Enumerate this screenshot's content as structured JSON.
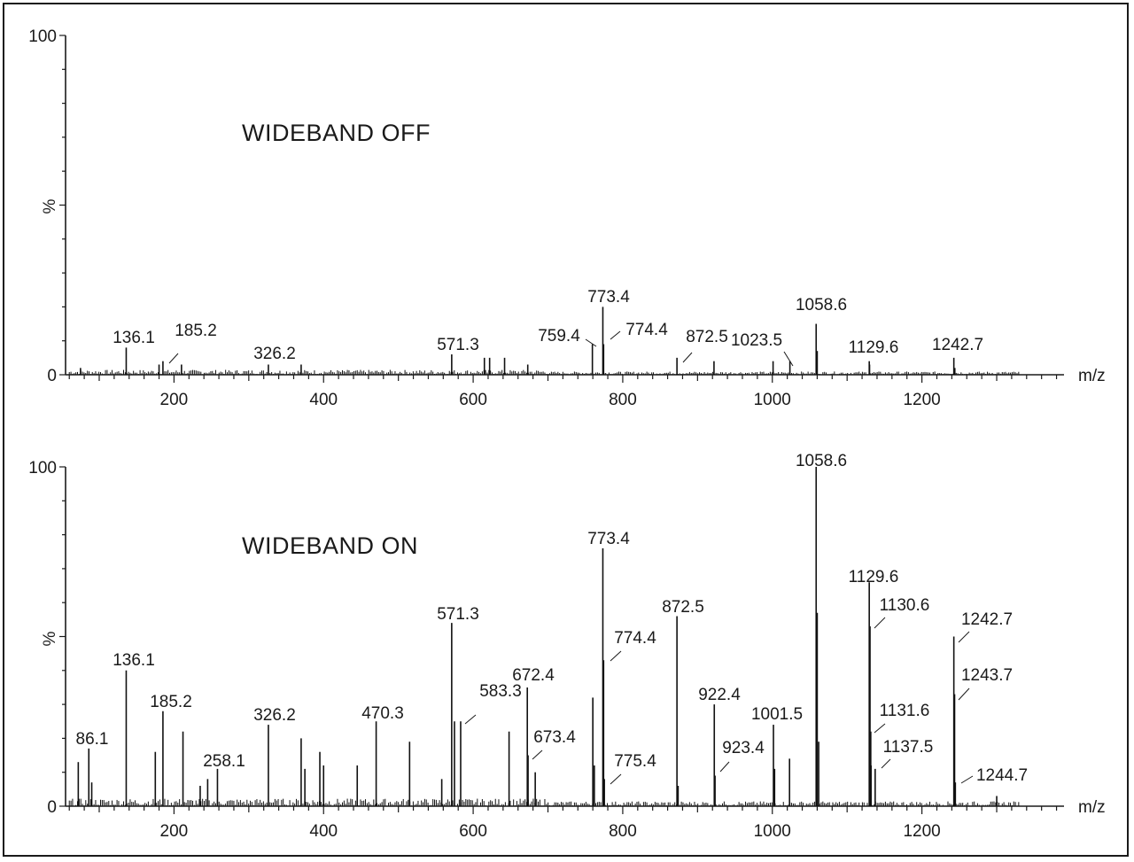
{
  "chart_data": [
    {
      "type": "bar",
      "title": "WIDEBAND OFF",
      "ylabel": "%",
      "xlabel": "m/z",
      "xlim": [
        55,
        1390
      ],
      "ylim": [
        0,
        100
      ],
      "xticks": [
        200,
        400,
        600,
        800,
        1000,
        1200
      ],
      "yticks": [
        0,
        100
      ],
      "peaks": [
        {
          "mz": 136.1,
          "intensity": 8,
          "label": "136.1"
        },
        {
          "mz": 185.2,
          "intensity": 4,
          "label": "185.2"
        },
        {
          "mz": 326.2,
          "intensity": 3,
          "label": "326.2"
        },
        {
          "mz": 571.3,
          "intensity": 6,
          "label": "571.3"
        },
        {
          "mz": 759.4,
          "intensity": 9,
          "label": "759.4"
        },
        {
          "mz": 773.4,
          "intensity": 20,
          "label": "773.4"
        },
        {
          "mz": 774.4,
          "intensity": 9,
          "label": "774.4"
        },
        {
          "mz": 872.5,
          "intensity": 5,
          "label": "872.5"
        },
        {
          "mz": 1023.5,
          "intensity": 4,
          "label": "1023.5"
        },
        {
          "mz": 1058.6,
          "intensity": 15,
          "label": "1058.6"
        },
        {
          "mz": 1129.6,
          "intensity": 4,
          "label": "1129.6"
        },
        {
          "mz": 1242.7,
          "intensity": 5,
          "label": "1242.7"
        },
        {
          "mz": 75,
          "intensity": 2,
          "label": ""
        },
        {
          "mz": 180,
          "intensity": 3,
          "label": ""
        },
        {
          "mz": 210,
          "intensity": 3,
          "label": ""
        },
        {
          "mz": 370,
          "intensity": 3,
          "label": ""
        },
        {
          "mz": 615,
          "intensity": 5,
          "label": ""
        },
        {
          "mz": 622,
          "intensity": 5,
          "label": ""
        },
        {
          "mz": 642,
          "intensity": 5,
          "label": ""
        },
        {
          "mz": 673,
          "intensity": 3,
          "label": ""
        },
        {
          "mz": 922,
          "intensity": 4,
          "label": ""
        },
        {
          "mz": 1001,
          "intensity": 4,
          "label": ""
        },
        {
          "mz": 1060,
          "intensity": 7,
          "label": ""
        },
        {
          "mz": 1130,
          "intensity": 3,
          "label": ""
        },
        {
          "mz": 1244,
          "intensity": 2,
          "label": ""
        }
      ]
    },
    {
      "type": "bar",
      "title": "WIDEBAND ON",
      "ylabel": "%",
      "xlabel": "m/z",
      "xlim": [
        55,
        1390
      ],
      "ylim": [
        0,
        100
      ],
      "xticks": [
        200,
        400,
        600,
        800,
        1000,
        1200
      ],
      "yticks": [
        0,
        100
      ],
      "peaks": [
        {
          "mz": 86.1,
          "intensity": 17,
          "label": "86.1"
        },
        {
          "mz": 136.1,
          "intensity": 40,
          "label": "136.1"
        },
        {
          "mz": 185.2,
          "intensity": 28,
          "label": "185.2"
        },
        {
          "mz": 258.1,
          "intensity": 11,
          "label": "258.1"
        },
        {
          "mz": 326.2,
          "intensity": 24,
          "label": "326.2"
        },
        {
          "mz": 470.3,
          "intensity": 25,
          "label": "470.3"
        },
        {
          "mz": 571.3,
          "intensity": 54,
          "label": "571.3"
        },
        {
          "mz": 583.3,
          "intensity": 25,
          "label": "583.3"
        },
        {
          "mz": 672.4,
          "intensity": 35,
          "label": "672.4"
        },
        {
          "mz": 673.4,
          "intensity": 15,
          "label": "673.4"
        },
        {
          "mz": 773.4,
          "intensity": 76,
          "label": "773.4"
        },
        {
          "mz": 774.4,
          "intensity": 43,
          "label": "774.4"
        },
        {
          "mz": 775.4,
          "intensity": 8,
          "label": "775.4"
        },
        {
          "mz": 872.5,
          "intensity": 56,
          "label": "872.5"
        },
        {
          "mz": 922.4,
          "intensity": 30,
          "label": "922.4"
        },
        {
          "mz": 923.4,
          "intensity": 9,
          "label": "923.4"
        },
        {
          "mz": 1001.5,
          "intensity": 24,
          "label": "1001.5"
        },
        {
          "mz": 1058.6,
          "intensity": 100,
          "label": "1058.6"
        },
        {
          "mz": 1129.6,
          "intensity": 66,
          "label": "1129.6"
        },
        {
          "mz": 1130.6,
          "intensity": 53,
          "label": "1130.6"
        },
        {
          "mz": 1131.6,
          "intensity": 22,
          "label": "1131.6"
        },
        {
          "mz": 1137.5,
          "intensity": 11,
          "label": "1137.5"
        },
        {
          "mz": 1242.7,
          "intensity": 50,
          "label": "1242.7"
        },
        {
          "mz": 1243.7,
          "intensity": 33,
          "label": "1243.7"
        },
        {
          "mz": 1244.7,
          "intensity": 7,
          "label": "1244.7"
        },
        {
          "mz": 72,
          "intensity": 13,
          "label": ""
        },
        {
          "mz": 90,
          "intensity": 7,
          "label": ""
        },
        {
          "mz": 175,
          "intensity": 16,
          "label": ""
        },
        {
          "mz": 212,
          "intensity": 22,
          "label": ""
        },
        {
          "mz": 235,
          "intensity": 6,
          "label": ""
        },
        {
          "mz": 245,
          "intensity": 8,
          "label": ""
        },
        {
          "mz": 370,
          "intensity": 20,
          "label": ""
        },
        {
          "mz": 375,
          "intensity": 11,
          "label": ""
        },
        {
          "mz": 395,
          "intensity": 16,
          "label": ""
        },
        {
          "mz": 400,
          "intensity": 12,
          "label": ""
        },
        {
          "mz": 445,
          "intensity": 12,
          "label": ""
        },
        {
          "mz": 515,
          "intensity": 19,
          "label": ""
        },
        {
          "mz": 558,
          "intensity": 8,
          "label": ""
        },
        {
          "mz": 575,
          "intensity": 25,
          "label": ""
        },
        {
          "mz": 648,
          "intensity": 22,
          "label": ""
        },
        {
          "mz": 683,
          "intensity": 10,
          "label": ""
        },
        {
          "mz": 760,
          "intensity": 32,
          "label": ""
        },
        {
          "mz": 762,
          "intensity": 12,
          "label": ""
        },
        {
          "mz": 874,
          "intensity": 6,
          "label": ""
        },
        {
          "mz": 1003,
          "intensity": 11,
          "label": ""
        },
        {
          "mz": 1023,
          "intensity": 14,
          "label": ""
        },
        {
          "mz": 1060,
          "intensity": 57,
          "label": ""
        },
        {
          "mz": 1062,
          "intensity": 19,
          "label": ""
        },
        {
          "mz": 1132,
          "intensity": 12,
          "label": ""
        },
        {
          "mz": 1300,
          "intensity": 3,
          "label": ""
        }
      ]
    }
  ]
}
